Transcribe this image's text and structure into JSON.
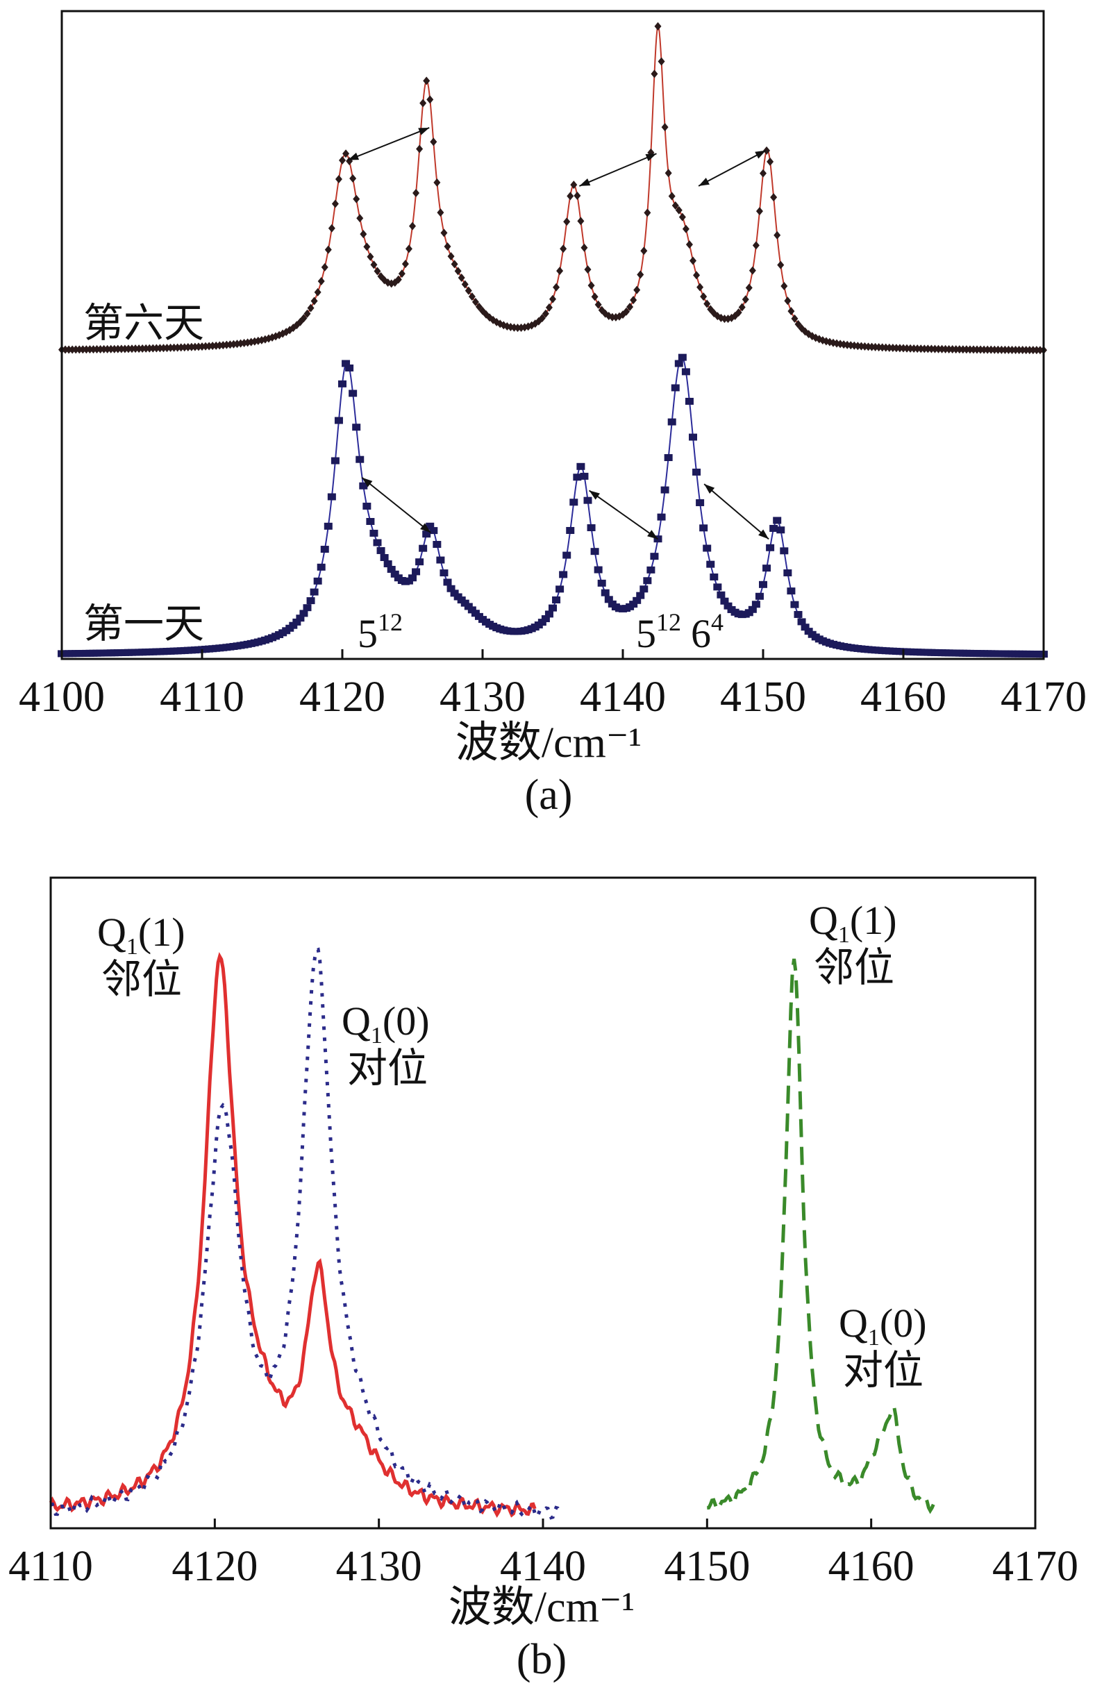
{
  "chart_data": [
    {
      "type": "line",
      "panel_label": "(a)",
      "xlabel": "波数/cm⁻¹",
      "ylabel": "",
      "xlim": [
        4100,
        4170
      ],
      "ylim": [
        0,
        100
      ],
      "xticks": [
        "4100",
        "4110",
        "4120",
        "4130",
        "4140",
        "4150",
        "4160",
        "4170"
      ],
      "grid": false,
      "series": [
        {
          "name": "第六天",
          "marker": "diamond",
          "line_color": "#c0392b",
          "marker_color": "#2a1a1a",
          "baseline": 47.5,
          "peaks": [
            [
              4120.2,
              27,
              1.2
            ],
            [
              4122,
              4,
              2
            ],
            [
              4126,
              36,
              0.8
            ],
            [
              4128,
              7,
              2
            ],
            [
              4136.5,
              24,
              0.9
            ],
            [
              4142.5,
              44,
              0.6
            ],
            [
              4144.2,
              15,
              1.2
            ],
            [
              4150.3,
              30,
              0.8
            ]
          ]
        },
        {
          "name": "第一天",
          "marker": "square",
          "line_color": "#2c2c9a",
          "marker_color": "#1c1a5a",
          "baseline": 0.5,
          "peaks": [
            [
              4120.3,
              40,
              1.1
            ],
            [
              4122.5,
              8,
              2.5
            ],
            [
              4126.3,
              14,
              0.9
            ],
            [
              4128.5,
              4,
              2
            ],
            [
              4137,
              27,
              1
            ],
            [
              4144.2,
              45,
              1.3
            ],
            [
              4151,
              19,
              0.9
            ]
          ]
        }
      ],
      "annotations": [
        {
          "text": "5",
          "sup": "12"
        },
        {
          "text": "5",
          "sup": "12"
        },
        {
          "text": "6",
          "sup": "4"
        }
      ]
    },
    {
      "type": "line",
      "panel_label": "(b)",
      "xlabel": "波数/cm⁻¹",
      "ylabel": "",
      "xlim": [
        4110,
        4170
      ],
      "ylim": [
        0,
        100
      ],
      "xticks": [
        "4110",
        "4120",
        "4130",
        "4140",
        "4150",
        "4160",
        "4170"
      ],
      "grid": false,
      "series": [
        {
          "name": "red-solid",
          "style": "solid",
          "color": "#e03030",
          "range": [
            4110,
            4139.5
          ],
          "baseline": 2,
          "peaks": [
            [
              4120.3,
              80,
              1.1
            ],
            [
              4122.5,
              10,
              2
            ],
            [
              4126.3,
              30,
              0.9
            ],
            [
              4128.5,
              8,
              2
            ]
          ]
        },
        {
          "name": "blue-dotted",
          "style": "dotted",
          "color": "#2b2b8a",
          "range": [
            4110,
            4141
          ],
          "baseline": 1.5,
          "peaks": [
            [
              4120.5,
              60,
              1.3
            ],
            [
              4126.2,
              80,
              1.1
            ],
            [
              4128.5,
              8,
              2.5
            ]
          ]
        },
        {
          "name": "green-dashed",
          "style": "dashed",
          "color": "#3a8a2a",
          "range": [
            4150,
            4164
          ],
          "baseline": 2,
          "peaks": [
            [
              4155.3,
              85,
              0.65
            ],
            [
              4160.3,
              6,
              0.8
            ],
            [
              4161.3,
              13,
              0.6
            ]
          ]
        }
      ],
      "annotations": [
        {
          "q": "Q",
          "sub": "1",
          "rest": "(1)",
          "cn": "邻位"
        },
        {
          "q": "Q",
          "sub": "1",
          "rest": "(0)",
          "cn": "对位"
        },
        {
          "q": "Q",
          "sub": "1",
          "rest": "(1)",
          "cn": "邻位"
        },
        {
          "q": "Q",
          "sub": "1",
          "rest": "(0)",
          "cn": "对位"
        }
      ]
    }
  ]
}
